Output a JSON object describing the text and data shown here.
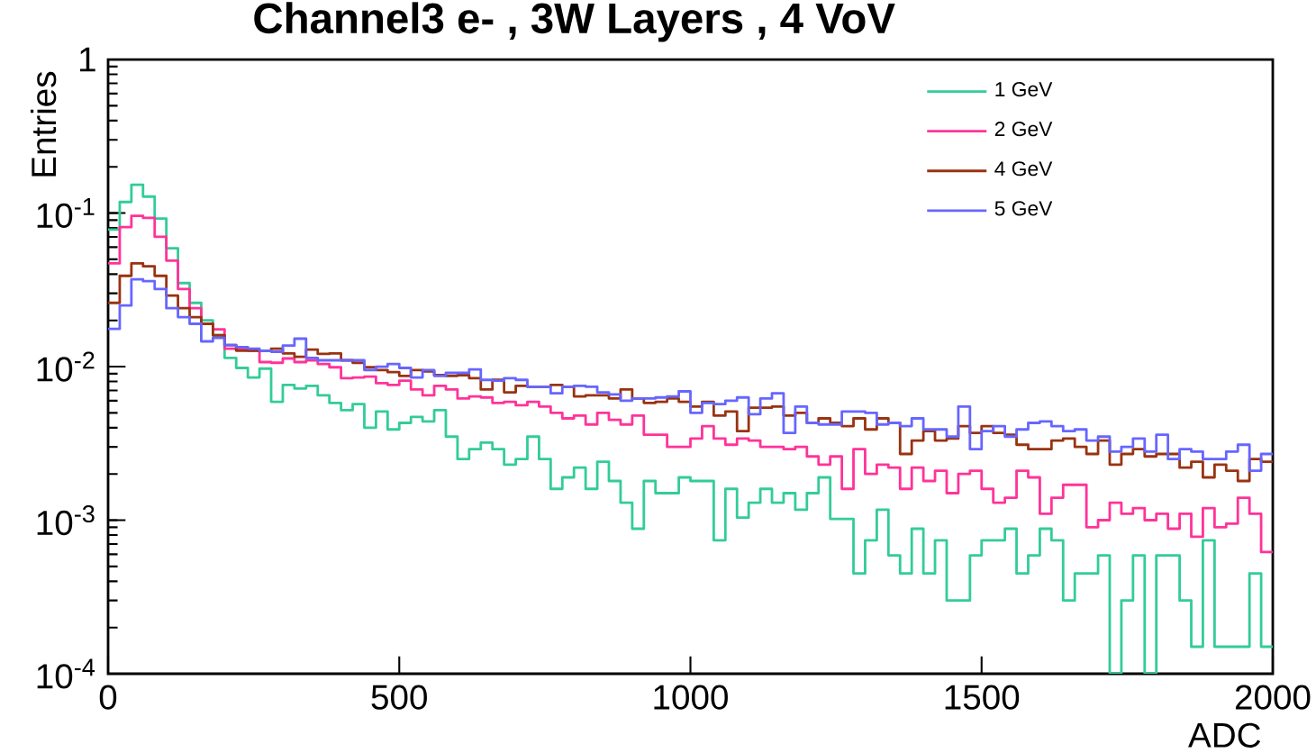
{
  "chart_data": {
    "type": "histogram",
    "title": "Channel3  e-  , 3W Layers , 4 VoV",
    "xlabel": "ADC",
    "ylabel": "Entries",
    "bins": [
      0,
      20,
      40,
      60,
      80,
      100,
      120,
      140,
      160,
      180,
      200,
      220,
      240,
      260,
      280,
      300,
      320,
      340,
      360,
      380,
      400,
      420,
      440,
      460,
      480,
      500,
      520,
      540,
      560,
      580,
      600,
      620,
      640,
      660,
      680,
      700,
      720,
      740,
      760,
      780,
      800,
      820,
      840,
      860,
      880,
      900,
      920,
      940,
      960,
      980,
      1000,
      1020,
      1040,
      1060,
      1080,
      1100,
      1120,
      1140,
      1160,
      1180,
      1200,
      1220,
      1240,
      1260,
      1280,
      1300,
      1320,
      1340,
      1360,
      1380,
      1400,
      1420,
      1440,
      1460,
      1480,
      1500,
      1520,
      1540,
      1560,
      1580,
      1600,
      1620,
      1640,
      1660,
      1680,
      1700,
      1720,
      1740,
      1760,
      1780,
      1800,
      1820,
      1840,
      1860,
      1880,
      1900,
      1920,
      1940,
      1960,
      1980,
      2000
    ],
    "series": [
      {
        "name": "1 GeV",
        "color": "#33cc99",
        "values": [
          0.078,
          0.118,
          0.153,
          0.128,
          0.092,
          0.059,
          0.035,
          0.026,
          0.02,
          0.016,
          0.0114,
          0.0098,
          0.0085,
          0.0097,
          0.0059,
          0.0076,
          0.0072,
          0.0075,
          0.0065,
          0.0058,
          0.0052,
          0.0057,
          0.004,
          0.0051,
          0.0039,
          0.0043,
          0.0047,
          0.0044,
          0.0052,
          0.0035,
          0.0025,
          0.0029,
          0.0032,
          0.0029,
          0.0023,
          0.0025,
          0.0035,
          0.0025,
          0.0016,
          0.0019,
          0.0022,
          0.0016,
          0.0024,
          0.0018,
          0.0013,
          0.00088,
          0.0018,
          0.0015,
          0.0015,
          0.0019,
          0.0018,
          0.0018,
          0.00074,
          0.0016,
          0.00104,
          0.0013,
          0.0016,
          0.0013,
          0.0015,
          0.00117,
          0.0015,
          0.0019,
          0.00102,
          0.00102,
          0.00045,
          0.00074,
          0.00117,
          0.00059,
          0.00045,
          0.00088,
          0.00045,
          0.00074,
          0.0003,
          0.0003,
          0.00059,
          0.00074,
          0.00074,
          0.00088,
          0.00045,
          0.00059,
          0.00088,
          0.00074,
          0.0003,
          0.00045,
          0.00045,
          0.00059,
          0.0001,
          0.0003,
          0.00059,
          0.0001,
          0.00059,
          0.00059,
          0.0003,
          0.00015,
          0.00074,
          0.00015,
          0.00015,
          0.00015,
          0.00045,
          0.00015
        ]
      },
      {
        "name": "2 GeV",
        "color": "#ff3399",
        "values": [
          0.047,
          0.081,
          0.096,
          0.093,
          0.07,
          0.049,
          0.032,
          0.024,
          0.019,
          0.0175,
          0.0131,
          0.0131,
          0.0127,
          0.0107,
          0.0106,
          0.0113,
          0.0107,
          0.011,
          0.0104,
          0.0099,
          0.0084,
          0.0085,
          0.0086,
          0.0078,
          0.0076,
          0.0081,
          0.0071,
          0.0065,
          0.0075,
          0.0071,
          0.0062,
          0.0064,
          0.0063,
          0.0058,
          0.0059,
          0.0056,
          0.0059,
          0.0055,
          0.005,
          0.0046,
          0.0048,
          0.0042,
          0.005,
          0.0045,
          0.0042,
          0.0048,
          0.0036,
          0.0036,
          0.003,
          0.003,
          0.0034,
          0.0041,
          0.0034,
          0.0031,
          0.0034,
          0.0033,
          0.003,
          0.003,
          0.0029,
          0.003,
          0.0026,
          0.0023,
          0.0026,
          0.0016,
          0.0029,
          0.002,
          0.0023,
          0.0022,
          0.0016,
          0.0022,
          0.0018,
          0.0021,
          0.0015,
          0.002,
          0.0021,
          0.0016,
          0.0013,
          0.0014,
          0.0021,
          0.0019,
          0.0011,
          0.0014,
          0.0017,
          0.0017,
          0.0009,
          0.001,
          0.0013,
          0.0011,
          0.0012,
          0.001,
          0.0011,
          0.00088,
          0.0011,
          0.00078,
          0.0012,
          0.0009,
          0.00095,
          0.0014,
          0.0011,
          0.00062
        ]
      },
      {
        "name": "4 GeV",
        "color": "#993311",
        "values": [
          0.026,
          0.039,
          0.047,
          0.045,
          0.039,
          0.029,
          0.024,
          0.021,
          0.019,
          0.016,
          0.0138,
          0.0127,
          0.0127,
          0.0127,
          0.0131,
          0.0122,
          0.0116,
          0.0129,
          0.0121,
          0.0122,
          0.011,
          0.0106,
          0.0099,
          0.0095,
          0.0092,
          0.0087,
          0.0095,
          0.0093,
          0.0088,
          0.0087,
          0.0088,
          0.0084,
          0.0071,
          0.0082,
          0.0068,
          0.0075,
          0.0074,
          0.0074,
          0.0076,
          0.0074,
          0.0064,
          0.0065,
          0.0065,
          0.0062,
          0.0071,
          0.0062,
          0.0058,
          0.0059,
          0.0062,
          0.0059,
          0.0055,
          0.0059,
          0.0048,
          0.0051,
          0.0038,
          0.0054,
          0.0054,
          0.0055,
          0.0048,
          0.005,
          0.0043,
          0.0046,
          0.0043,
          0.0041,
          0.0046,
          0.0039,
          0.0046,
          0.0043,
          0.0027,
          0.0033,
          0.0038,
          0.0033,
          0.0034,
          0.0041,
          0.0037,
          0.0041,
          0.0037,
          0.0036,
          0.0031,
          0.0029,
          0.0029,
          0.0033,
          0.0034,
          0.003,
          0.0027,
          0.0033,
          0.0023,
          0.0027,
          0.0029,
          0.0026,
          0.0027,
          0.0027,
          0.0022,
          0.0024,
          0.0019,
          0.0023,
          0.0021,
          0.0018,
          0.0025,
          0.0024
        ]
      },
      {
        "name": "5 GeV",
        "color": "#6666ff",
        "values": [
          0.0176,
          0.025,
          0.037,
          0.036,
          0.032,
          0.024,
          0.021,
          0.019,
          0.0146,
          0.0154,
          0.0138,
          0.0134,
          0.0131,
          0.0127,
          0.0125,
          0.0137,
          0.0152,
          0.0114,
          0.011,
          0.011,
          0.011,
          0.011,
          0.0095,
          0.01,
          0.0104,
          0.0098,
          0.0085,
          0.0095,
          0.0087,
          0.0091,
          0.0091,
          0.0096,
          0.0082,
          0.0081,
          0.0084,
          0.0082,
          0.0074,
          0.0074,
          0.0067,
          0.0074,
          0.0075,
          0.0074,
          0.0068,
          0.0066,
          0.006,
          0.0062,
          0.0062,
          0.0063,
          0.0064,
          0.0069,
          0.005,
          0.0058,
          0.0057,
          0.006,
          0.0063,
          0.0049,
          0.0062,
          0.0067,
          0.0037,
          0.0055,
          0.0043,
          0.0042,
          0.0042,
          0.0051,
          0.0051,
          0.005,
          0.0042,
          0.0043,
          0.0041,
          0.0046,
          0.0039,
          0.0039,
          0.0035,
          0.0055,
          0.0029,
          0.0038,
          0.0041,
          0.0035,
          0.0039,
          0.0043,
          0.0044,
          0.0041,
          0.0038,
          0.0039,
          0.0033,
          0.0035,
          0.0028,
          0.003,
          0.0034,
          0.0028,
          0.0036,
          0.0025,
          0.0029,
          0.0028,
          0.0025,
          0.0025,
          0.0028,
          0.0031,
          0.0021,
          0.0027
        ]
      }
    ],
    "log": true,
    "legend": "top right",
    "xlim": [
      0,
      2000
    ],
    "xticks": [
      0,
      500,
      1000,
      1500,
      2000
    ],
    "ylim": [
      0.0001,
      1
    ],
    "yticks": [
      {
        "value": 0.0001,
        "label": "10$^{-4}$"
      },
      {
        "value": 0.001,
        "label": "10$^{-3}$"
      },
      {
        "value": 0.01,
        "label": "10$^{-2}$"
      },
      {
        "value": 0.1,
        "label": "10$^{-1}$"
      },
      1
    ]
  }
}
